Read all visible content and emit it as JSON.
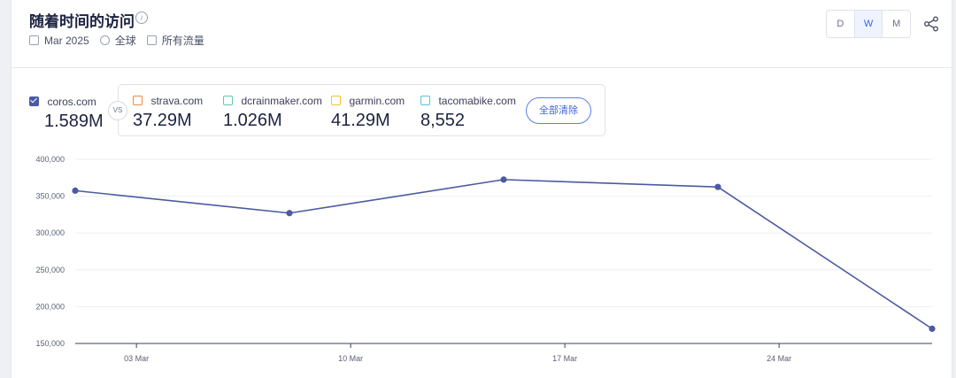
{
  "header": {
    "title": "随着时间的访问",
    "info_glyph": "i",
    "date": "Mar 2025",
    "region": "全球",
    "traffic": "所有流量",
    "granularity": [
      "D",
      "W",
      "M"
    ],
    "granularity_active": "W"
  },
  "primary_site": {
    "name": "coros.com",
    "value": "1.589M",
    "color": "#4b5aa2"
  },
  "vs_label": "VS",
  "compare_sites": [
    {
      "name": "strava.com",
      "value": "37.29M",
      "color": "#f0883a"
    },
    {
      "name": "dcrainmaker.com",
      "value": "1.026M",
      "color": "#5ccaa6"
    },
    {
      "name": "garmin.com",
      "value": "41.29M",
      "color": "#f2c12e"
    },
    {
      "name": "tacomabike.com",
      "value": "8,552",
      "color": "#56c3e0"
    }
  ],
  "clear_all_label": "全部清除",
  "chart_data": {
    "type": "line",
    "series": [
      {
        "name": "coros.com",
        "color": "#4b5aa2",
        "x": [
          "2025-03-01",
          "2025-03-08",
          "2025-03-15",
          "2025-03-22",
          "2025-03-29"
        ],
        "values": [
          357500,
          327000,
          372500,
          362500,
          170000
        ]
      }
    ],
    "x_ticks": [
      "03 Mar",
      "10 Mar",
      "17 Mar",
      "24 Mar"
    ],
    "y_ticks": [
      "150,000",
      "200,000",
      "250,000",
      "300,000",
      "350,000",
      "400,000"
    ],
    "ylim": [
      150000,
      400000
    ],
    "grid": true,
    "legend": "none"
  }
}
